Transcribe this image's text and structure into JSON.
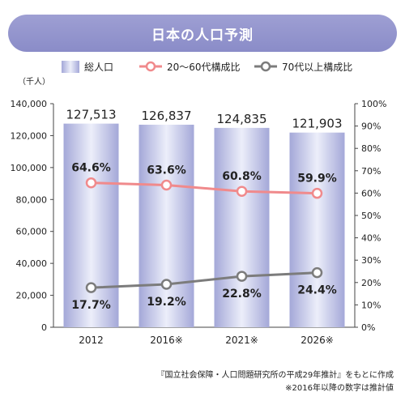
{
  "chart_data": {
    "type": "bar+line",
    "title": "日本の人口予測",
    "categories": [
      "2012",
      "2016※",
      "2021※",
      "2026※"
    ],
    "y_left": {
      "unit_label": "（千人）",
      "ylim": [
        0,
        140000
      ],
      "ticks": [
        "0",
        "20,000",
        "40,000",
        "60,000",
        "80,000",
        "100,000",
        "120,000",
        "140,000"
      ]
    },
    "y_right": {
      "ylim": [
        0,
        100
      ],
      "ticks": [
        "0%",
        "10%",
        "20%",
        "30%",
        "40%",
        "50%",
        "60%",
        "70%",
        "80%",
        "90%",
        "100%"
      ]
    },
    "legend_placement": "top",
    "grid": false,
    "series": [
      {
        "name": "総人口",
        "kind": "bar",
        "axis": "left",
        "values": [
          127513,
          126837,
          124835,
          121903
        ],
        "labels": [
          "127,513",
          "126,837",
          "124,835",
          "121,903"
        ],
        "color": "#a9add9"
      },
      {
        "name": "20～60代構成比",
        "kind": "line",
        "axis": "right",
        "values": [
          64.6,
          63.6,
          60.8,
          59.9
        ],
        "labels": [
          "64.6%",
          "63.6%",
          "60.8%",
          "59.9%"
        ],
        "color": "#f08a8c"
      },
      {
        "name": "70代以上構成比",
        "kind": "line",
        "axis": "right",
        "values": [
          17.7,
          19.2,
          22.8,
          24.4
        ],
        "labels": [
          "17.7%",
          "19.2%",
          "22.8%",
          "24.4%"
        ],
        "color": "#7c7c7c"
      }
    ]
  },
  "source": {
    "line1": "『国立社会保障・人口問題研究所の平成29年推計』をもとに作成",
    "line2": "※2016年以降の数字は推計値"
  }
}
